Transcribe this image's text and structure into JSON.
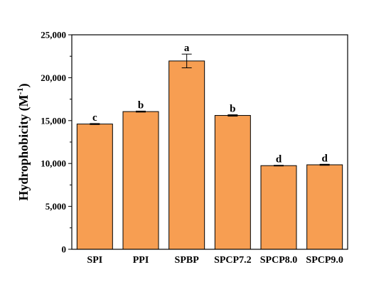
{
  "chart_data": {
    "type": "bar",
    "categories": [
      "SPI",
      "PPI",
      "SPBP",
      "SPCP7.2",
      "SPCP8.0",
      "SPCP9.0"
    ],
    "values": [
      14600,
      16050,
      21950,
      15600,
      9750,
      9850
    ],
    "errors": [
      60,
      60,
      800,
      80,
      40,
      60
    ],
    "significance": [
      "c",
      "b",
      "a",
      "b",
      "d",
      "d"
    ],
    "ylabel_main": "Hydrophobicity (M",
    "ylabel_sup": "-1",
    "ylabel_close": ")",
    "xlabel": "",
    "ylim": [
      0,
      25000
    ],
    "yticks": [
      "0",
      "5,000",
      "10,000",
      "15,000",
      "20,000",
      "25,000"
    ],
    "ytick_values": [
      0,
      5000,
      10000,
      15000,
      20000,
      25000
    ],
    "minor_tick_step": 2500,
    "grid": false,
    "bar_color": "#F79E52",
    "bar_edge_color": "#000000"
  }
}
